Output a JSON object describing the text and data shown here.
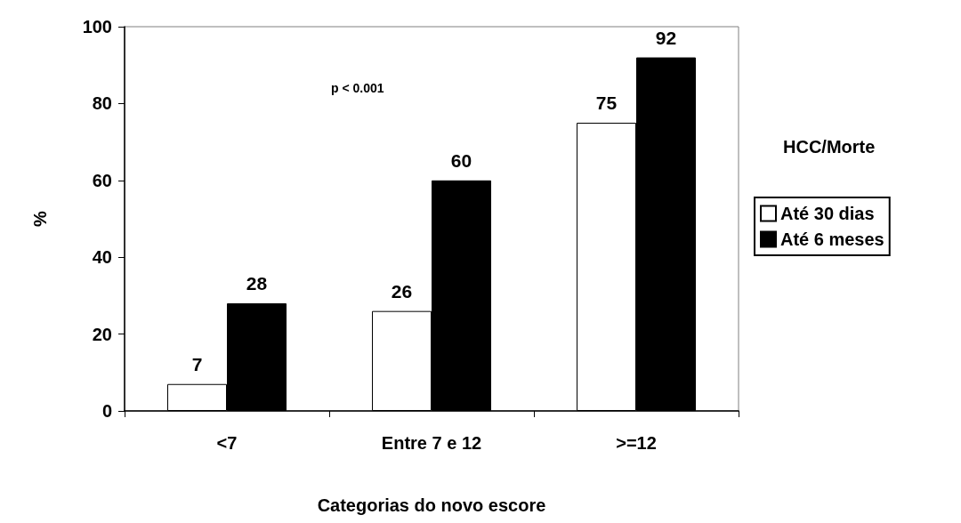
{
  "chart_data": {
    "type": "bar",
    "xlabel": "Categorias do novo escore",
    "ylabel": "%",
    "legend_title": "HCC/Morte",
    "annotations": [
      "p < 0.001"
    ],
    "categories": [
      "<7",
      "Entre 7 e 12",
      ">=12"
    ],
    "series": [
      {
        "name": "Até 30 dias",
        "color": "#ffffff",
        "values": [
          7,
          26,
          75
        ]
      },
      {
        "name": "Até 6 meses",
        "color": "#000000",
        "values": [
          28,
          60,
          92
        ]
      }
    ],
    "ylim": [
      0,
      100
    ],
    "yticks": [
      0,
      20,
      40,
      60,
      80,
      100
    ],
    "grid": false,
    "legend": "right",
    "data_labels": true
  }
}
